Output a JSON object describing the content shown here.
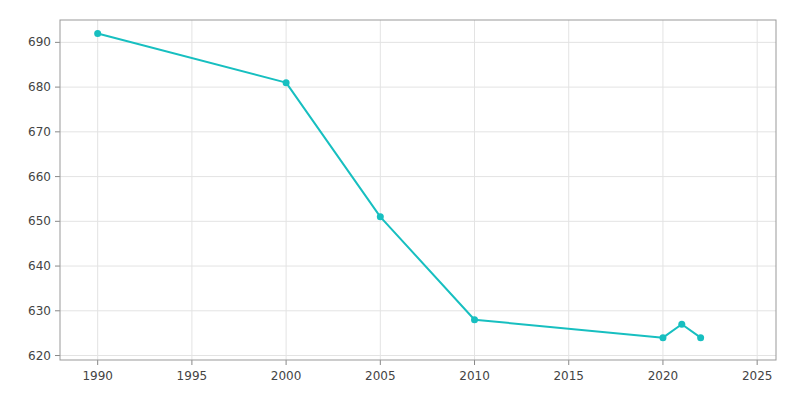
{
  "chart_data": {
    "type": "line",
    "x": [
      1990,
      2000,
      2005,
      2010,
      2020,
      2021,
      2022
    ],
    "values": [
      692,
      681,
      651,
      628,
      624,
      627,
      624
    ],
    "color": "#17BFC0",
    "marker": "circle",
    "xlim": [
      1988,
      2026
    ],
    "ylim": [
      619,
      695
    ],
    "xticks": [
      1990,
      1995,
      2000,
      2005,
      2010,
      2015,
      2020,
      2025
    ],
    "yticks": [
      620,
      630,
      640,
      650,
      660,
      670,
      680,
      690
    ],
    "grid": true
  }
}
